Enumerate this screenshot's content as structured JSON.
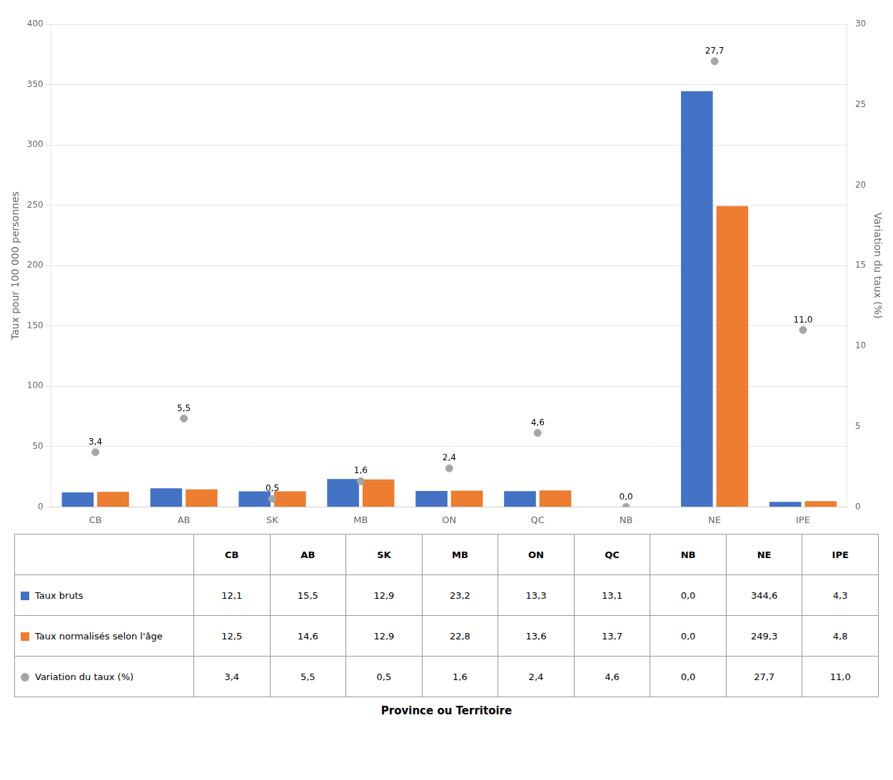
{
  "chart_data": {
    "type": "bar",
    "categories": [
      "CB",
      "AB",
      "SK",
      "MB",
      "ON",
      "QC",
      "NB",
      "NE",
      "IPE"
    ],
    "x_label": "Province ou Territoire",
    "y_label": "Taux pour 100 000 personnes",
    "y2_label": "Variation du taux (%)",
    "ylim": [
      0,
      400
    ],
    "yticks": [
      0,
      50,
      100,
      150,
      200,
      250,
      300,
      350,
      400
    ],
    "y2lim": [
      0,
      30
    ],
    "y2ticks": [
      0,
      5,
      10,
      15,
      20,
      25,
      30
    ],
    "grid": true,
    "series": [
      {
        "name": "Taux bruts",
        "color": "#4472C4",
        "values": [
          12.1,
          15.5,
          12.9,
          23.2,
          13.3,
          13.1,
          0.0,
          344.6,
          4.3
        ],
        "value_labels": [
          "12,1",
          "15,5",
          "12,9",
          "23,2",
          "13,3",
          "13,1",
          "0,0",
          "344,6",
          "4,3"
        ]
      },
      {
        "name": "Taux normalisés selon l'âge",
        "color": "#ED7D31",
        "values": [
          12.5,
          14.6,
          12.9,
          22.8,
          13.6,
          13.7,
          0.0,
          249.3,
          4.8
        ],
        "value_labels": [
          "12,5",
          "14,6",
          "12,9",
          "22,8",
          "13,6",
          "13,7",
          "0,0",
          "249,3",
          "4,8"
        ]
      },
      {
        "name": "Variation du taux (%)",
        "type": "scatter",
        "axis": "y2",
        "color": "#A5A5A5",
        "marker": "circle",
        "data_labels": true,
        "values": [
          3.4,
          5.5,
          0.5,
          1.6,
          2.4,
          4.6,
          0.0,
          27.7,
          11.0
        ],
        "value_labels": [
          "3,4",
          "5,5",
          "0,5",
          "1,6",
          "2,4",
          "4,6",
          "0,0",
          "27,7",
          "11,0"
        ]
      }
    ]
  }
}
